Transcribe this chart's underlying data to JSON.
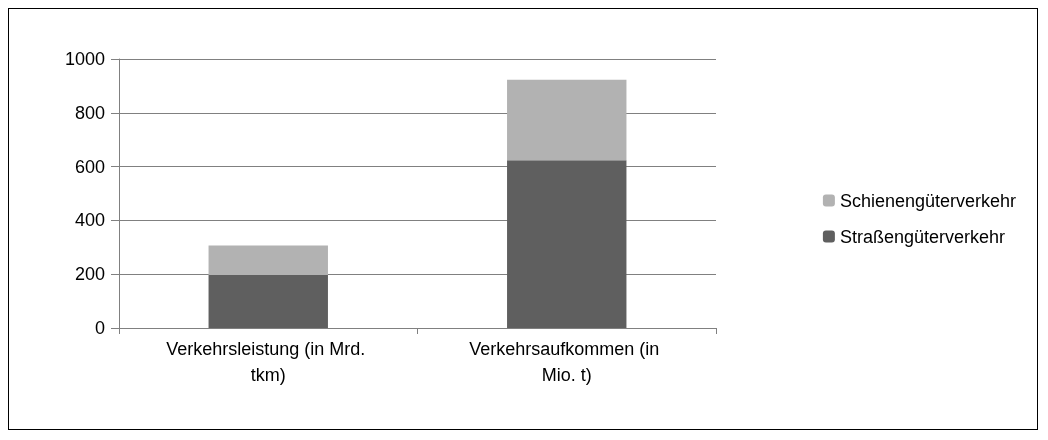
{
  "chart_data": {
    "type": "bar",
    "stacked": true,
    "categories": [
      "Verkehrsleistung (in Mrd. tkm)",
      "Verkehrsaufkommen (in Mio. t)"
    ],
    "series": [
      {
        "name": "Straßengüterverkehr",
        "color": "#5f5f5f",
        "values": [
          197,
          624
        ]
      },
      {
        "name": "Schienengüterverkehr",
        "color": "#b2b2b2",
        "values": [
          110,
          299
        ]
      }
    ],
    "ylim": [
      0,
      1000
    ],
    "yticks": [
      0,
      200,
      400,
      600,
      800,
      1000
    ],
    "grid": "y",
    "legend": "right"
  }
}
